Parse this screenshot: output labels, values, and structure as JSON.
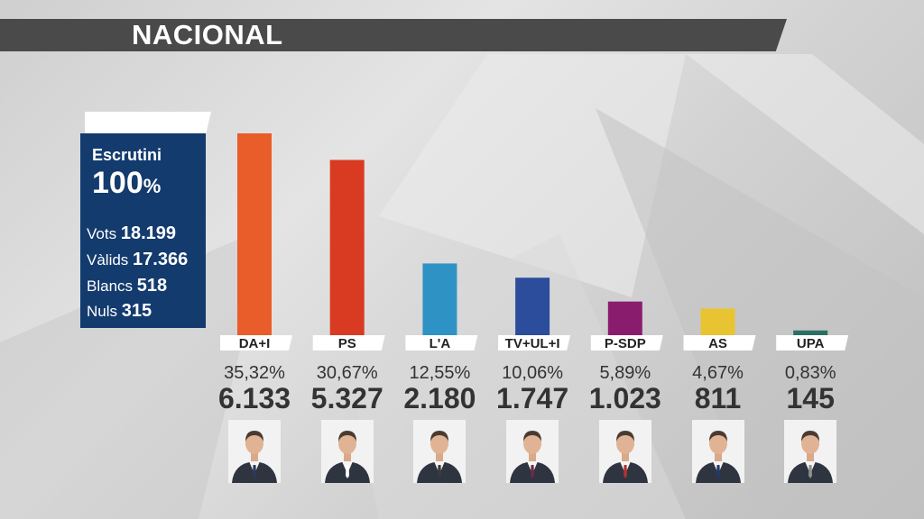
{
  "header": {
    "title": "NACIONAL"
  },
  "summary": {
    "escrutini_label": "Escrutini",
    "escrutini_value": "100",
    "escrutini_unit": "%",
    "stats": [
      {
        "label": "Vots",
        "value": "18.199"
      },
      {
        "label": "Vàlids",
        "value": "17.366"
      },
      {
        "label": "Blancs",
        "value": "518"
      },
      {
        "label": "Nuls",
        "value": "315"
      }
    ]
  },
  "chart_data": {
    "type": "bar",
    "categories": [
      "DA+I",
      "PS",
      "L'A",
      "TV+UL+I",
      "P-SDP",
      "AS",
      "UPA"
    ],
    "values": [
      35.32,
      30.67,
      12.55,
      10.06,
      5.89,
      4.67,
      0.83
    ],
    "percent_labels": [
      "35,32%",
      "30,67%",
      "12,55%",
      "10,06%",
      "5,89%",
      "4,67%",
      "0,83%"
    ],
    "vote_labels": [
      "6.133",
      "5.327",
      "2.180",
      "1.747",
      "1.023",
      "811",
      "145"
    ],
    "colors": [
      "#e85d2a",
      "#d93a22",
      "#2e93c4",
      "#2b4d9c",
      "#8a1c6e",
      "#e8c432",
      "#2a6f63"
    ],
    "ylim": [
      0,
      35.32
    ]
  },
  "candidates": [
    {
      "icon": "candidate-photo-icon",
      "tie": "#2a3a5a"
    },
    {
      "icon": "candidate-photo-icon",
      "tie": "#ffffff"
    },
    {
      "icon": "candidate-photo-icon",
      "tie": "#3a3a3a"
    },
    {
      "icon": "candidate-photo-icon",
      "tie": "#6a2a4a"
    },
    {
      "icon": "candidate-photo-icon",
      "tie": "#b03030"
    },
    {
      "icon": "candidate-photo-icon",
      "tie": "#203a6a"
    },
    {
      "icon": "candidate-photo-icon",
      "tie": "#909090"
    }
  ]
}
